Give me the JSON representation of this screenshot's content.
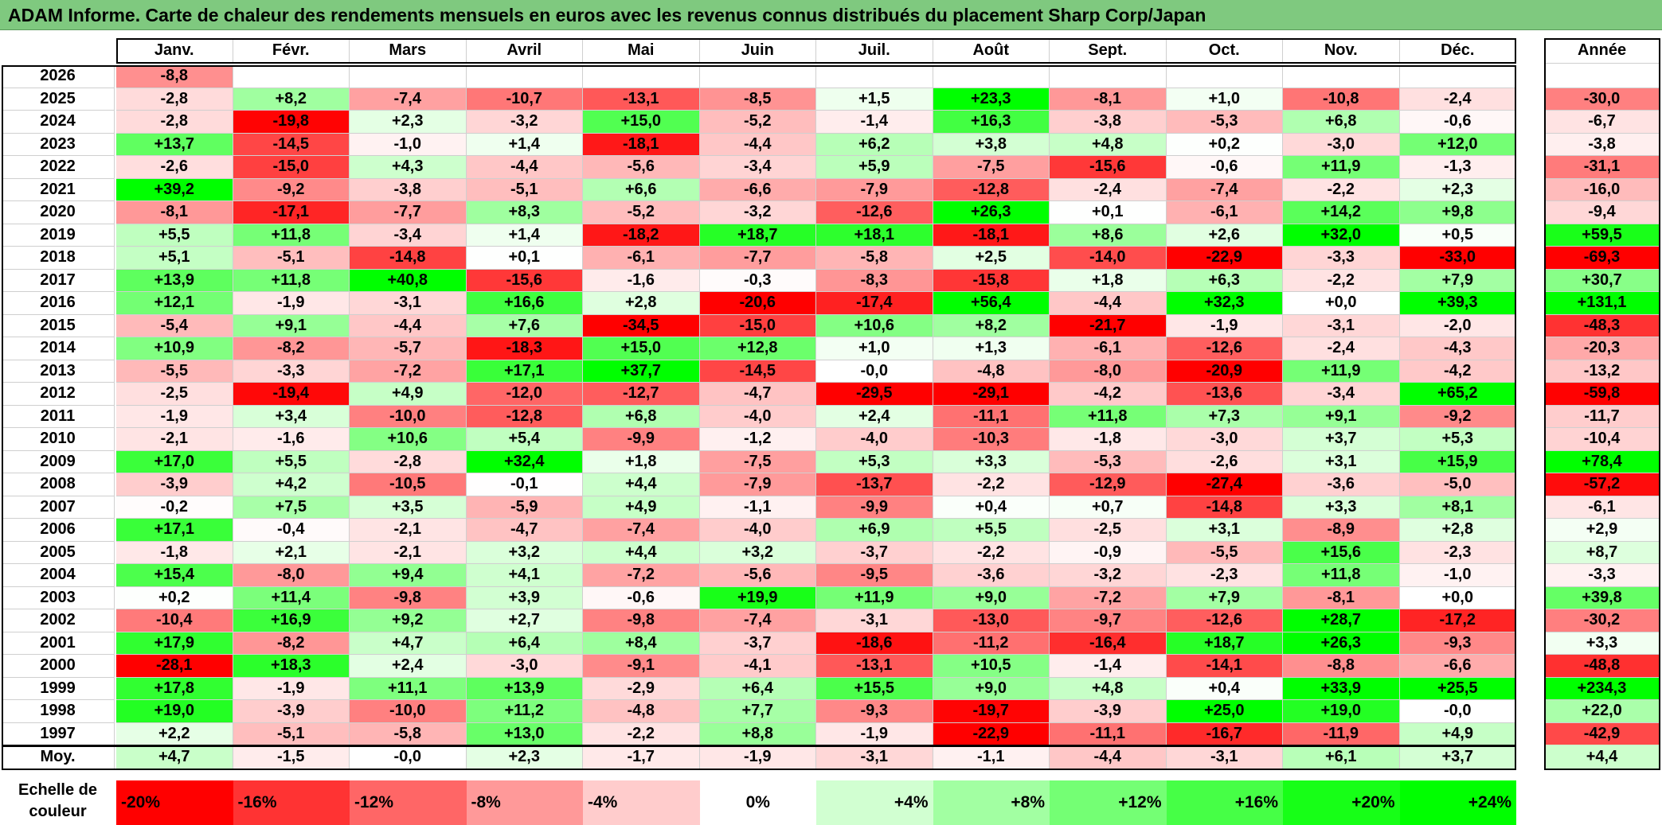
{
  "title": "ADAM Informe. Carte de chaleur des rendements mensuels en euros avec les revenus connus distribués du placement Sharp Corp/Japan",
  "chart_data": {
    "type": "heatmap",
    "months": [
      "Janv.",
      "Févr.",
      "Mars",
      "Avril",
      "Mai",
      "Juin",
      "Juil.",
      "Août",
      "Sept.",
      "Oct.",
      "Nov.",
      "Déc."
    ],
    "year_header": "Année",
    "avg_label": "Moy.",
    "rows": [
      {
        "year": "2026",
        "values": [
          "-8,8",
          "",
          "",
          "",
          "",
          "",
          "",
          "",
          "",
          "",
          "",
          ""
        ],
        "annual": ""
      },
      {
        "year": "2025",
        "values": [
          "-2,8",
          "+8,2",
          "-7,4",
          "-10,7",
          "-13,1",
          "-8,5",
          "+1,5",
          "+23,3",
          "-8,1",
          "+1,0",
          "-10,8",
          "-2,4"
        ],
        "annual": "-30,0"
      },
      {
        "year": "2024",
        "values": [
          "-2,8",
          "-19,8",
          "+2,3",
          "-3,2",
          "+15,0",
          "-5,2",
          "-1,4",
          "+16,3",
          "-3,8",
          "-5,3",
          "+6,8",
          "-0,6"
        ],
        "annual": "-6,7"
      },
      {
        "year": "2023",
        "values": [
          "+13,7",
          "-14,5",
          "-1,0",
          "+1,4",
          "-18,1",
          "-4,4",
          "+6,2",
          "+3,8",
          "+4,8",
          "+0,2",
          "-3,0",
          "+12,0"
        ],
        "annual": "-3,8"
      },
      {
        "year": "2022",
        "values": [
          "-2,6",
          "-15,0",
          "+4,3",
          "-4,4",
          "-5,6",
          "-3,4",
          "+5,9",
          "-7,5",
          "-15,6",
          "-0,6",
          "+11,9",
          "-1,3"
        ],
        "annual": "-31,1"
      },
      {
        "year": "2021",
        "values": [
          "+39,2",
          "-9,2",
          "-3,8",
          "-5,1",
          "+6,6",
          "-6,6",
          "-7,9",
          "-12,8",
          "-2,4",
          "-7,4",
          "-2,2",
          "+2,3"
        ],
        "annual": "-16,0"
      },
      {
        "year": "2020",
        "values": [
          "-8,1",
          "-17,1",
          "-7,7",
          "+8,3",
          "-5,2",
          "-3,2",
          "-12,6",
          "+26,3",
          "+0,1",
          "-6,1",
          "+14,2",
          "+9,8"
        ],
        "annual": "-9,4"
      },
      {
        "year": "2019",
        "values": [
          "+5,5",
          "+11,8",
          "-3,4",
          "+1,4",
          "-18,2",
          "+18,7",
          "+18,1",
          "-18,1",
          "+8,6",
          "+2,6",
          "+32,0",
          "+0,5"
        ],
        "annual": "+59,5"
      },
      {
        "year": "2018",
        "values": [
          "+5,1",
          "-5,1",
          "-14,8",
          "+0,1",
          "-6,1",
          "-7,7",
          "-5,8",
          "+2,5",
          "-14,0",
          "-22,9",
          "-3,3",
          "-33,0"
        ],
        "annual": "-69,3"
      },
      {
        "year": "2017",
        "values": [
          "+13,9",
          "+11,8",
          "+40,8",
          "-15,6",
          "-1,6",
          "-0,3",
          "-8,3",
          "-15,8",
          "+1,8",
          "+6,3",
          "-2,2",
          "+7,9"
        ],
        "annual": "+30,7"
      },
      {
        "year": "2016",
        "values": [
          "+12,1",
          "-1,9",
          "-3,1",
          "+16,6",
          "+2,8",
          "-20,6",
          "-17,4",
          "+56,4",
          "-4,4",
          "+32,3",
          "+0,0",
          "+39,3"
        ],
        "annual": "+131,1"
      },
      {
        "year": "2015",
        "values": [
          "-5,4",
          "+9,1",
          "-4,4",
          "+7,6",
          "-34,5",
          "-15,0",
          "+10,6",
          "+8,2",
          "-21,7",
          "-1,9",
          "-3,1",
          "-2,0"
        ],
        "annual": "-48,3"
      },
      {
        "year": "2014",
        "values": [
          "+10,9",
          "-8,2",
          "-5,7",
          "-18,3",
          "+15,0",
          "+12,8",
          "+1,0",
          "+1,3",
          "-6,1",
          "-12,6",
          "-2,4",
          "-4,3"
        ],
        "annual": "-20,3"
      },
      {
        "year": "2013",
        "values": [
          "-5,5",
          "-3,3",
          "-7,2",
          "+17,1",
          "+37,7",
          "-14,5",
          "-0,0",
          "-4,8",
          "-8,0",
          "-20,9",
          "+11,9",
          "-4,2"
        ],
        "annual": "-13,2"
      },
      {
        "year": "2012",
        "values": [
          "-2,5",
          "-19,4",
          "+4,9",
          "-12,0",
          "-12,7",
          "-4,7",
          "-29,5",
          "-29,1",
          "-4,2",
          "-13,6",
          "-3,4",
          "+65,2"
        ],
        "annual": "-59,8"
      },
      {
        "year": "2011",
        "values": [
          "-1,9",
          "+3,4",
          "-10,0",
          "-12,8",
          "+6,8",
          "-4,0",
          "+2,4",
          "-11,1",
          "+11,8",
          "+7,3",
          "+9,1",
          "-9,2"
        ],
        "annual": "-11,7"
      },
      {
        "year": "2010",
        "values": [
          "-2,1",
          "-1,6",
          "+10,6",
          "+5,4",
          "-9,9",
          "-1,2",
          "-4,0",
          "-10,3",
          "-1,8",
          "-3,0",
          "+3,7",
          "+5,3"
        ],
        "annual": "-10,4"
      },
      {
        "year": "2009",
        "values": [
          "+17,0",
          "+5,5",
          "-2,8",
          "+32,4",
          "+1,8",
          "-7,5",
          "+5,3",
          "+3,3",
          "-5,3",
          "-2,6",
          "+3,1",
          "+15,9"
        ],
        "annual": "+78,4"
      },
      {
        "year": "2008",
        "values": [
          "-3,9",
          "+4,2",
          "-10,5",
          "-0,1",
          "+4,4",
          "-7,9",
          "-13,7",
          "-2,2",
          "-12,9",
          "-27,4",
          "-3,6",
          "-5,0"
        ],
        "annual": "-57,2"
      },
      {
        "year": "2007",
        "values": [
          "-0,2",
          "+7,5",
          "+3,5",
          "-5,9",
          "+4,9",
          "-1,1",
          "-9,9",
          "+0,4",
          "+0,7",
          "-14,8",
          "+3,3",
          "+8,1"
        ],
        "annual": "-6,1"
      },
      {
        "year": "2006",
        "values": [
          "+17,1",
          "-0,4",
          "-2,1",
          "-4,7",
          "-7,4",
          "-4,0",
          "+6,9",
          "+5,5",
          "-2,5",
          "+3,1",
          "-8,9",
          "+2,8"
        ],
        "annual": "+2,9"
      },
      {
        "year": "2005",
        "values": [
          "-1,8",
          "+2,1",
          "-2,1",
          "+3,2",
          "+4,4",
          "+3,2",
          "-3,7",
          "-2,2",
          "-0,9",
          "-5,5",
          "+15,6",
          "-2,3"
        ],
        "annual": "+8,7"
      },
      {
        "year": "2004",
        "values": [
          "+15,4",
          "-8,0",
          "+9,4",
          "+4,1",
          "-7,2",
          "-5,6",
          "-9,5",
          "-3,6",
          "-3,2",
          "-2,3",
          "+11,8",
          "-1,0"
        ],
        "annual": "-3,3"
      },
      {
        "year": "2003",
        "values": [
          "+0,2",
          "+11,4",
          "-9,8",
          "+3,9",
          "-0,6",
          "+19,9",
          "+11,9",
          "+9,0",
          "-7,2",
          "+7,9",
          "-8,1",
          "+0,0"
        ],
        "annual": "+39,8"
      },
      {
        "year": "2002",
        "values": [
          "-10,4",
          "+16,9",
          "+9,2",
          "+2,7",
          "-9,8",
          "-7,4",
          "-3,1",
          "-13,0",
          "-9,7",
          "-12,6",
          "+28,7",
          "-17,2"
        ],
        "annual": "-30,2"
      },
      {
        "year": "2001",
        "values": [
          "+17,9",
          "-8,2",
          "+4,7",
          "+6,4",
          "+8,4",
          "-3,7",
          "-18,6",
          "-11,2",
          "-16,4",
          "+18,7",
          "+26,3",
          "-9,3"
        ],
        "annual": "+3,3"
      },
      {
        "year": "2000",
        "values": [
          "-28,1",
          "+18,3",
          "+2,4",
          "-3,0",
          "-9,1",
          "-4,1",
          "-13,1",
          "+10,5",
          "-1,4",
          "-14,1",
          "-8,8",
          "-6,6"
        ],
        "annual": "-48,8"
      },
      {
        "year": "1999",
        "values": [
          "+17,8",
          "-1,9",
          "+11,1",
          "+13,9",
          "-2,9",
          "+6,4",
          "+15,5",
          "+9,0",
          "+4,8",
          "+0,4",
          "+33,9",
          "+25,5"
        ],
        "annual": "+234,3"
      },
      {
        "year": "1998",
        "values": [
          "+19,0",
          "-3,9",
          "-10,0",
          "+11,2",
          "-4,8",
          "+7,7",
          "-9,3",
          "-19,7",
          "-3,9",
          "+25,0",
          "+19,0",
          "-0,0"
        ],
        "annual": "+22,0"
      },
      {
        "year": "1997",
        "values": [
          "+2,2",
          "-5,1",
          "-5,8",
          "+13,0",
          "-2,2",
          "+8,8",
          "-1,9",
          "-22,9",
          "-11,1",
          "-16,7",
          "-11,9",
          "+4,9"
        ],
        "annual": "-42,9"
      }
    ],
    "averages": [
      "+4,7",
      "-1,5",
      "-0,0",
      "+2,3",
      "-1,7",
      "-1,9",
      "-3,1",
      "-1,1",
      "-4,4",
      "-3,1",
      "+6,1",
      "+3,7"
    ],
    "average_annual": "+4,4",
    "scale_label": "Echelle de couleur",
    "scale": [
      {
        "label": "-20%",
        "value": -20
      },
      {
        "label": "-16%",
        "value": -16
      },
      {
        "label": "-12%",
        "value": -12
      },
      {
        "label": "-8%",
        "value": -8
      },
      {
        "label": "-4%",
        "value": -4
      },
      {
        "label": "0%",
        "value": 0
      },
      {
        "label": "+4%",
        "value": 4
      },
      {
        "label": "+8%",
        "value": 8
      },
      {
        "label": "+12%",
        "value": 12
      },
      {
        "label": "+16%",
        "value": 16
      },
      {
        "label": "+20%",
        "value": 20
      },
      {
        "label": "+24%",
        "value": 24
      }
    ]
  }
}
